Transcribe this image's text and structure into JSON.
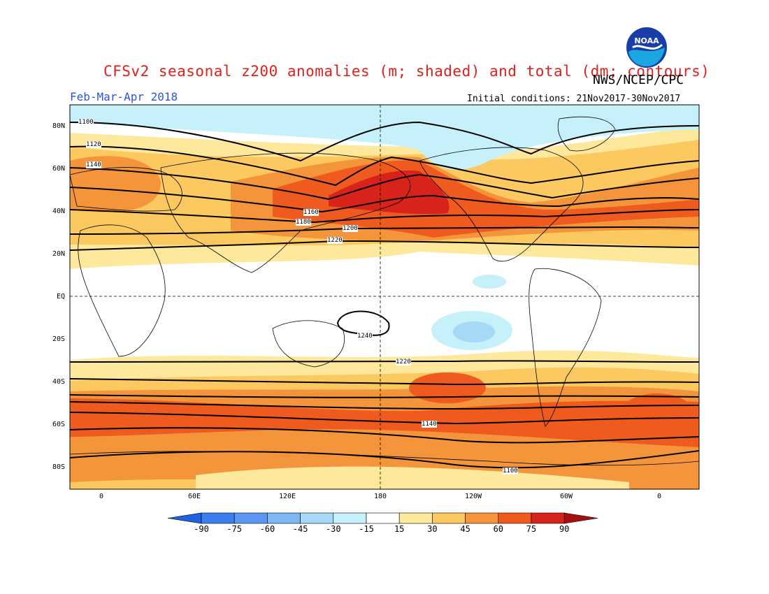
{
  "header": {
    "title": "CFSv2 seasonal z200 anomalies (m; shaded) and total (dm; contours)",
    "agency": "NWS/NCEP/CPC",
    "period": "Feb-Mar-Apr 2018",
    "initial_conditions": "Initial conditions: 21Nov2017-30Nov2017",
    "logo_text": "NOAA"
  },
  "axes": {
    "lat_ticks": [
      "80N",
      "60N",
      "40N",
      "20N",
      "EQ",
      "20S",
      "40S",
      "60S",
      "80S"
    ],
    "lon_ticks": [
      "0",
      "60E",
      "120E",
      "180",
      "120W",
      "60W",
      "0"
    ]
  },
  "colorbar": {
    "levels": [
      "-90",
      "-75",
      "-60",
      "-45",
      "-30",
      "-15",
      "15",
      "30",
      "45",
      "60",
      "75",
      "90"
    ],
    "colors": [
      "#1f63e0",
      "#3a7ef0",
      "#5a96f2",
      "#7db8f3",
      "#a5d9f6",
      "#c6f0fa",
      "#ffffff",
      "#fde89b",
      "#fcc860",
      "#f5953b",
      "#ef5a1f",
      "#d8231b",
      "#a50f0f"
    ]
  },
  "contours": {
    "labels": [
      "1100",
      "1120",
      "1140",
      "1160",
      "1180",
      "1200",
      "1220",
      "1240"
    ]
  }
}
